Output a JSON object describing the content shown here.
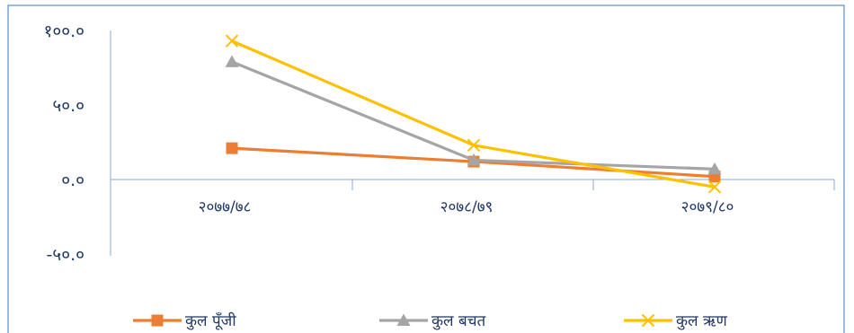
{
  "chart_data": {
    "type": "line",
    "categories": [
      "२०७७/७८",
      "२०७८/७९",
      "२०७९/८०"
    ],
    "y_ticks": [
      "१००.०",
      "५०.०",
      "०.०",
      "-५०.०"
    ],
    "y_tick_values": [
      100,
      50,
      0,
      -50
    ],
    "ylim": [
      -50,
      100
    ],
    "legend_position": "bottom",
    "grid": false,
    "series": [
      {
        "name": "कुल पूँजी",
        "marker": "square",
        "color": "#ed7d31",
        "values": [
          21,
          12,
          2
        ]
      },
      {
        "name": "कुल बचत",
        "marker": "triangle",
        "color": "#a5a5a5",
        "values": [
          79,
          13,
          7
        ]
      },
      {
        "name": "कुल ऋण",
        "marker": "x",
        "color": "#ffc000",
        "values": [
          93,
          23,
          -5
        ]
      }
    ]
  }
}
